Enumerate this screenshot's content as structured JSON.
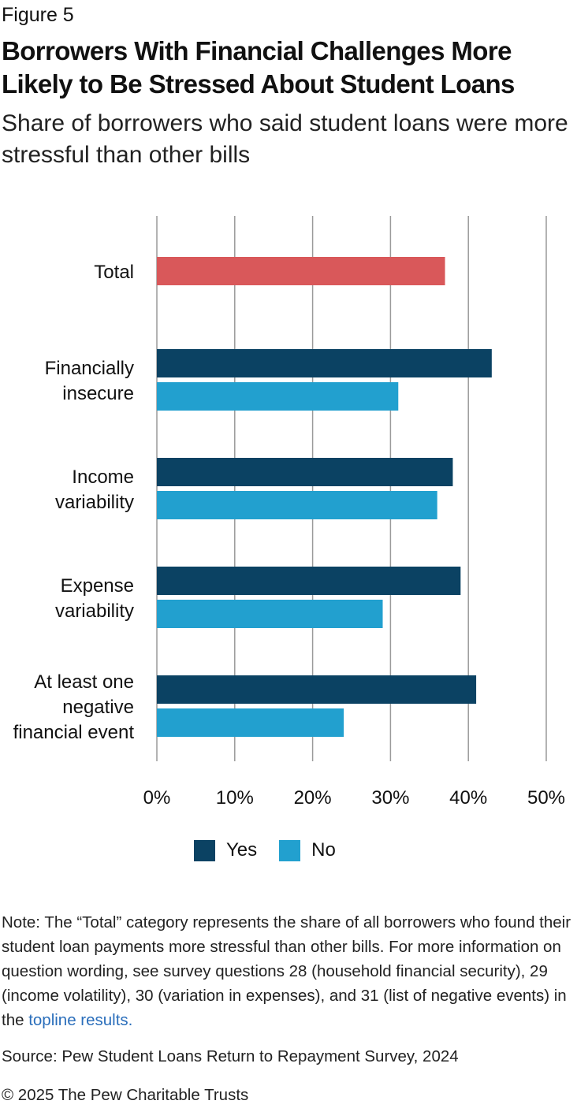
{
  "figure_label": "Figure 5",
  "title": "Borrowers With Financial Challenges More Likely to Be Stressed About Student Loans",
  "subtitle": "Share of borrowers who said student loans were more stressful than other bills",
  "colors": {
    "total": "#d9585a",
    "yes": "#0b4263",
    "no": "#22a0cf",
    "grid": "#9a9a9a",
    "link": "#2a6ebb"
  },
  "chart_data": {
    "type": "bar",
    "orientation": "horizontal",
    "categories": [
      [
        "Total"
      ],
      [
        "Financially",
        "insecure"
      ],
      [
        "Income",
        "variability"
      ],
      [
        "Expense",
        "variability"
      ],
      [
        "At least one",
        "negative",
        "financial event"
      ]
    ],
    "total_value": 37,
    "series": [
      {
        "name": "Yes",
        "values": [
          null,
          43,
          38,
          39,
          41
        ]
      },
      {
        "name": "No",
        "values": [
          null,
          31,
          36,
          29,
          24
        ]
      }
    ],
    "xlim": [
      0,
      50
    ],
    "x_ticks": [
      "0%",
      "10%",
      "20%",
      "30%",
      "40%",
      "50%"
    ],
    "grid": true,
    "legend_position": "bottom"
  },
  "legend": {
    "yes_label": "Yes",
    "no_label": "No"
  },
  "note": {
    "text": "Note: The “Total” category represents the share of all borrowers who found their student loan payments more stressful than other bills. For more information on question wording, see survey questions 28 (household financial security), 29 (income volatility), 30 (variation in expenses), and 31 (list of negative events) in the ",
    "link_text": "topline results."
  },
  "source": "Source: Pew Student Loans Return to Repayment Survey, 2024",
  "copyright": "© 2025 The Pew Charitable Trusts"
}
